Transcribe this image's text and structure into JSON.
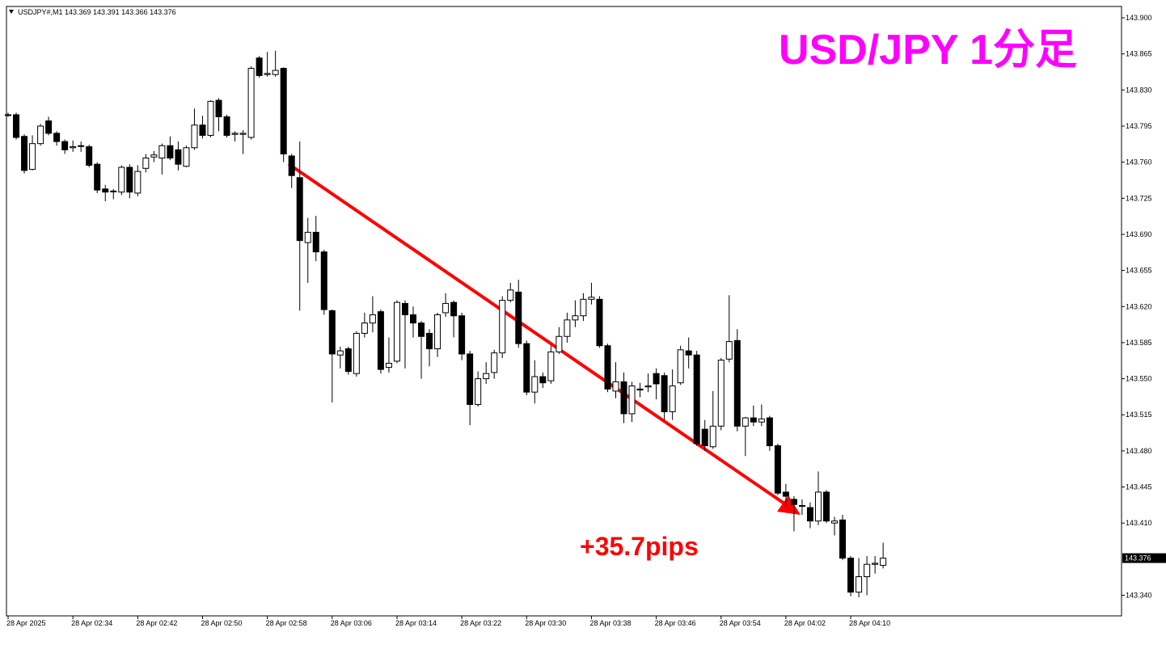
{
  "chart_data": {
    "type": "candlestick",
    "header": "USDJPY#,M1 143.369 143.391 143.366 143.376",
    "title": "USD/JPY 1分足",
    "annotation": "+35.7pips",
    "up_color": "#ffffff",
    "down_color": "#000000",
    "edge_color": "#000000",
    "arrow_color": "#ff0000",
    "title_color": "#ff00ff",
    "annotation_color": "#ff0000",
    "categories": [
      "28 Apr 2025",
      null,
      null,
      null,
      null,
      null,
      null,
      null,
      "28 Apr 02:34",
      null,
      null,
      null,
      null,
      null,
      null,
      null,
      "28 Apr 02:42",
      null,
      null,
      null,
      null,
      null,
      null,
      null,
      "28 Apr 02:50",
      null,
      null,
      null,
      null,
      null,
      null,
      null,
      "28 Apr 02:58",
      null,
      null,
      null,
      null,
      null,
      null,
      null,
      "28 Apr 03:06",
      null,
      null,
      null,
      null,
      null,
      null,
      null,
      "28 Apr 03:14",
      null,
      null,
      null,
      null,
      null,
      null,
      null,
      "28 Apr 03:22",
      null,
      null,
      null,
      null,
      null,
      null,
      null,
      "28 Apr 03:30",
      null,
      null,
      null,
      null,
      null,
      null,
      null,
      "28 Apr 03:38",
      null,
      null,
      null,
      null,
      null,
      null,
      null,
      "28 Apr 03:46",
      null,
      null,
      null,
      null,
      null,
      null,
      null,
      "28 Apr 03:54",
      null,
      null,
      null,
      null,
      null,
      null,
      null,
      "28 Apr 04:02",
      null,
      null,
      null,
      null,
      null,
      null,
      null,
      "28 Apr 04:10",
      null,
      null,
      null,
      null
    ],
    "open": [
      143.806,
      143.806,
      143.785,
      143.753,
      143.778,
      143.8,
      143.788,
      143.78,
      143.774,
      143.776,
      143.775,
      143.758,
      143.734,
      143.732,
      143.731,
      143.755,
      143.73,
      143.754,
      143.765,
      143.764,
      143.776,
      143.772,
      143.756,
      143.774,
      143.796,
      143.786,
      143.82,
      143.804,
      143.787,
      143.787,
      143.784,
      143.861,
      143.845,
      143.845,
      143.851,
      143.766,
      143.745,
      143.682,
      143.692,
      143.673,
      143.616,
      143.573,
      143.579,
      143.555,
      143.594,
      143.604,
      143.615,
      143.561,
      143.567,
      143.623,
      143.612,
      143.604,
      143.594,
      143.579,
      143.614,
      143.624,
      143.611,
      143.574,
      143.525,
      143.55,
      143.556,
      143.575,
      143.626,
      143.634,
      143.584,
      143.537,
      143.552,
      143.548,
      143.576,
      143.591,
      143.607,
      143.611,
      143.627,
      143.627,
      143.582,
      143.538,
      143.547,
      143.516,
      143.54,
      143.542,
      143.555,
      143.553,
      143.518,
      143.546,
      143.577,
      143.573,
      143.501,
      143.484,
      143.504,
      143.569,
      143.587,
      143.504,
      143.512,
      143.508,
      143.512,
      143.485,
      143.44,
      143.433,
      143.427,
      143.425,
      143.412,
      143.44,
      143.41,
      143.413,
      143.376,
      143.343,
      143.358,
      143.37,
      143.369
    ],
    "high": [
      143.808,
      143.808,
      143.787,
      143.786,
      143.797,
      143.804,
      143.79,
      143.782,
      143.781,
      143.78,
      143.777,
      143.76,
      143.738,
      143.734,
      143.757,
      143.758,
      143.757,
      143.768,
      143.771,
      143.778,
      143.785,
      143.78,
      143.776,
      143.812,
      143.805,
      143.82,
      143.822,
      143.806,
      143.79,
      143.791,
      143.853,
      143.863,
      143.867,
      143.868,
      143.852,
      143.768,
      143.78,
      143.706,
      143.708,
      143.675,
      143.617,
      143.581,
      143.581,
      143.596,
      143.614,
      143.63,
      143.617,
      143.59,
      143.626,
      143.626,
      143.62,
      143.606,
      143.598,
      143.614,
      143.633,
      143.626,
      143.614,
      143.577,
      143.557,
      143.566,
      143.578,
      143.63,
      143.643,
      143.646,
      143.587,
      143.568,
      143.556,
      143.582,
      143.6,
      143.614,
      143.626,
      143.633,
      143.643,
      143.63,
      143.584,
      143.566,
      143.556,
      143.547,
      143.546,
      143.555,
      143.56,
      143.556,
      143.559,
      143.582,
      143.59,
      143.577,
      143.51,
      143.538,
      143.57,
      143.631,
      143.598,
      143.513,
      143.524,
      143.525,
      143.514,
      143.487,
      143.448,
      143.436,
      143.433,
      143.43,
      143.46,
      143.442,
      143.416,
      143.418,
      143.378,
      143.376,
      143.378,
      143.378,
      143.391
    ],
    "low": [
      143.804,
      143.782,
      143.749,
      143.752,
      143.776,
      143.786,
      143.776,
      143.768,
      143.77,
      143.77,
      143.755,
      143.73,
      143.722,
      143.724,
      143.728,
      143.725,
      143.727,
      143.75,
      143.76,
      143.748,
      143.762,
      143.752,
      143.755,
      143.772,
      143.783,
      143.784,
      143.79,
      143.784,
      143.78,
      143.768,
      143.782,
      143.842,
      143.843,
      143.843,
      143.76,
      143.735,
      143.616,
      143.643,
      143.664,
      143.612,
      143.527,
      143.56,
      143.554,
      143.552,
      143.59,
      143.595,
      143.555,
      143.556,
      143.565,
      143.56,
      143.59,
      143.55,
      143.562,
      143.571,
      143.61,
      143.59,
      143.568,
      143.505,
      143.523,
      143.545,
      143.55,
      143.57,
      143.624,
      143.58,
      143.534,
      143.526,
      143.541,
      143.545,
      143.574,
      143.585,
      143.6,
      143.606,
      143.622,
      143.58,
      143.537,
      143.531,
      143.507,
      143.508,
      143.532,
      143.537,
      143.53,
      143.51,
      143.51,
      143.544,
      143.56,
      143.485,
      143.48,
      143.482,
      143.5,
      143.566,
      143.499,
      143.475,
      143.504,
      143.504,
      143.48,
      143.437,
      143.426,
      143.402,
      143.418,
      143.405,
      143.408,
      143.41,
      143.398,
      143.374,
      143.339,
      143.338,
      143.34,
      143.361,
      143.366
    ],
    "close": [
      143.806,
      143.784,
      143.752,
      143.778,
      143.795,
      143.788,
      143.78,
      143.772,
      143.775,
      143.776,
      143.757,
      143.733,
      143.731,
      143.732,
      143.755,
      143.731,
      143.751,
      143.764,
      143.767,
      143.776,
      143.764,
      143.758,
      143.774,
      143.796,
      143.786,
      143.819,
      143.804,
      143.786,
      143.788,
      143.788,
      143.851,
      143.844,
      143.846,
      143.849,
      143.768,
      143.747,
      143.684,
      143.692,
      143.673,
      143.617,
      143.574,
      143.577,
      143.557,
      143.594,
      143.604,
      143.612,
      143.559,
      143.565,
      143.624,
      143.612,
      143.604,
      143.591,
      143.579,
      143.612,
      143.623,
      143.611,
      143.574,
      143.525,
      143.55,
      143.555,
      143.575,
      143.626,
      143.636,
      143.584,
      143.537,
      143.552,
      143.546,
      143.576,
      143.591,
      143.607,
      143.611,
      143.627,
      143.629,
      143.582,
      143.54,
      143.547,
      143.516,
      143.543,
      143.539,
      143.543,
      143.545,
      143.518,
      143.543,
      143.578,
      143.573,
      143.487,
      143.485,
      143.504,
      143.568,
      143.586,
      143.504,
      143.512,
      143.508,
      143.511,
      143.485,
      143.439,
      143.436,
      143.428,
      143.427,
      143.412,
      143.44,
      143.412,
      143.412,
      143.376,
      143.343,
      143.358,
      143.37,
      143.371,
      143.376
    ],
    "ylim": [
      143.32,
      143.911
    ],
    "yticks": [
      {
        "value": 143.9,
        "label": "143.900"
      },
      143.865,
      {
        "value": 143.83,
        "label": "143.830"
      },
      143.795,
      {
        "value": 143.76,
        "label": "143.760"
      },
      143.725,
      {
        "value": 143.69,
        "label": "143.690"
      },
      143.655,
      {
        "value": 143.62,
        "label": "143.620"
      },
      143.585,
      {
        "value": 143.55,
        "label": "143.550"
      },
      143.515,
      {
        "value": 143.48,
        "label": "143.480"
      },
      143.445,
      {
        "value": 143.41,
        "label": "143.410"
      },
      {
        "value": 143.34,
        "label": "143.340"
      }
    ]
  }
}
